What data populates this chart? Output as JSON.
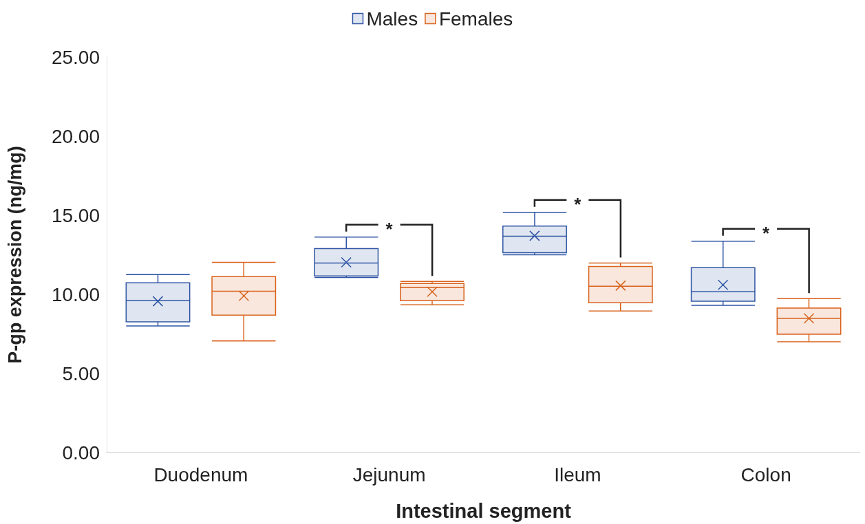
{
  "chart_data": {
    "type": "box",
    "xlabel": "Intestinal segment",
    "ylabel": "P-gp expression (ng/mg)",
    "categories": [
      "Duodenum",
      "Jejunum",
      "Ileum",
      "Colon"
    ],
    "ylim": [
      0,
      25
    ],
    "yticks": [
      {
        "value": 0,
        "label": "0.00"
      },
      {
        "value": 5,
        "label": "5.00"
      },
      {
        "value": 10,
        "label": "10.00"
      },
      {
        "value": 15,
        "label": "15.00"
      },
      {
        "value": 20,
        "label": "20.00"
      },
      {
        "value": 25,
        "label": "25.00"
      }
    ],
    "grid": false,
    "legend": "top",
    "series": [
      {
        "name": "Males",
        "color": "#2f55a4",
        "boxes": [
          {
            "low": 8.0,
            "q1": 8.26,
            "median": 9.6,
            "q3": 10.73,
            "high": 11.25,
            "mean": 9.56
          },
          {
            "low": 11.07,
            "q1": 11.16,
            "median": 11.98,
            "q3": 12.89,
            "high": 13.62,
            "mean": 12.02
          },
          {
            "low": 12.5,
            "q1": 12.63,
            "median": 13.67,
            "q3": 14.32,
            "high": 15.18,
            "mean": 13.7
          },
          {
            "low": 9.3,
            "q1": 9.56,
            "median": 10.16,
            "q3": 11.68,
            "high": 13.36,
            "mean": 10.6
          }
        ]
      },
      {
        "name": "Females",
        "color": "#d9621c",
        "boxes": [
          {
            "low": 7.05,
            "q1": 8.69,
            "median": 10.2,
            "q3": 11.12,
            "high": 12.02,
            "mean": 9.9
          },
          {
            "low": 9.34,
            "q1": 9.6,
            "median": 10.42,
            "q3": 10.68,
            "high": 10.81,
            "mean": 10.16
          },
          {
            "low": 8.95,
            "q1": 9.47,
            "median": 10.51,
            "q3": 11.76,
            "high": 11.98,
            "mean": 10.55
          },
          {
            "low": 7.0,
            "q1": 7.48,
            "median": 8.48,
            "q3": 9.13,
            "high": 9.73,
            "mean": 8.48
          }
        ]
      }
    ],
    "annotations": [
      "*",
      "*",
      "*"
    ]
  }
}
